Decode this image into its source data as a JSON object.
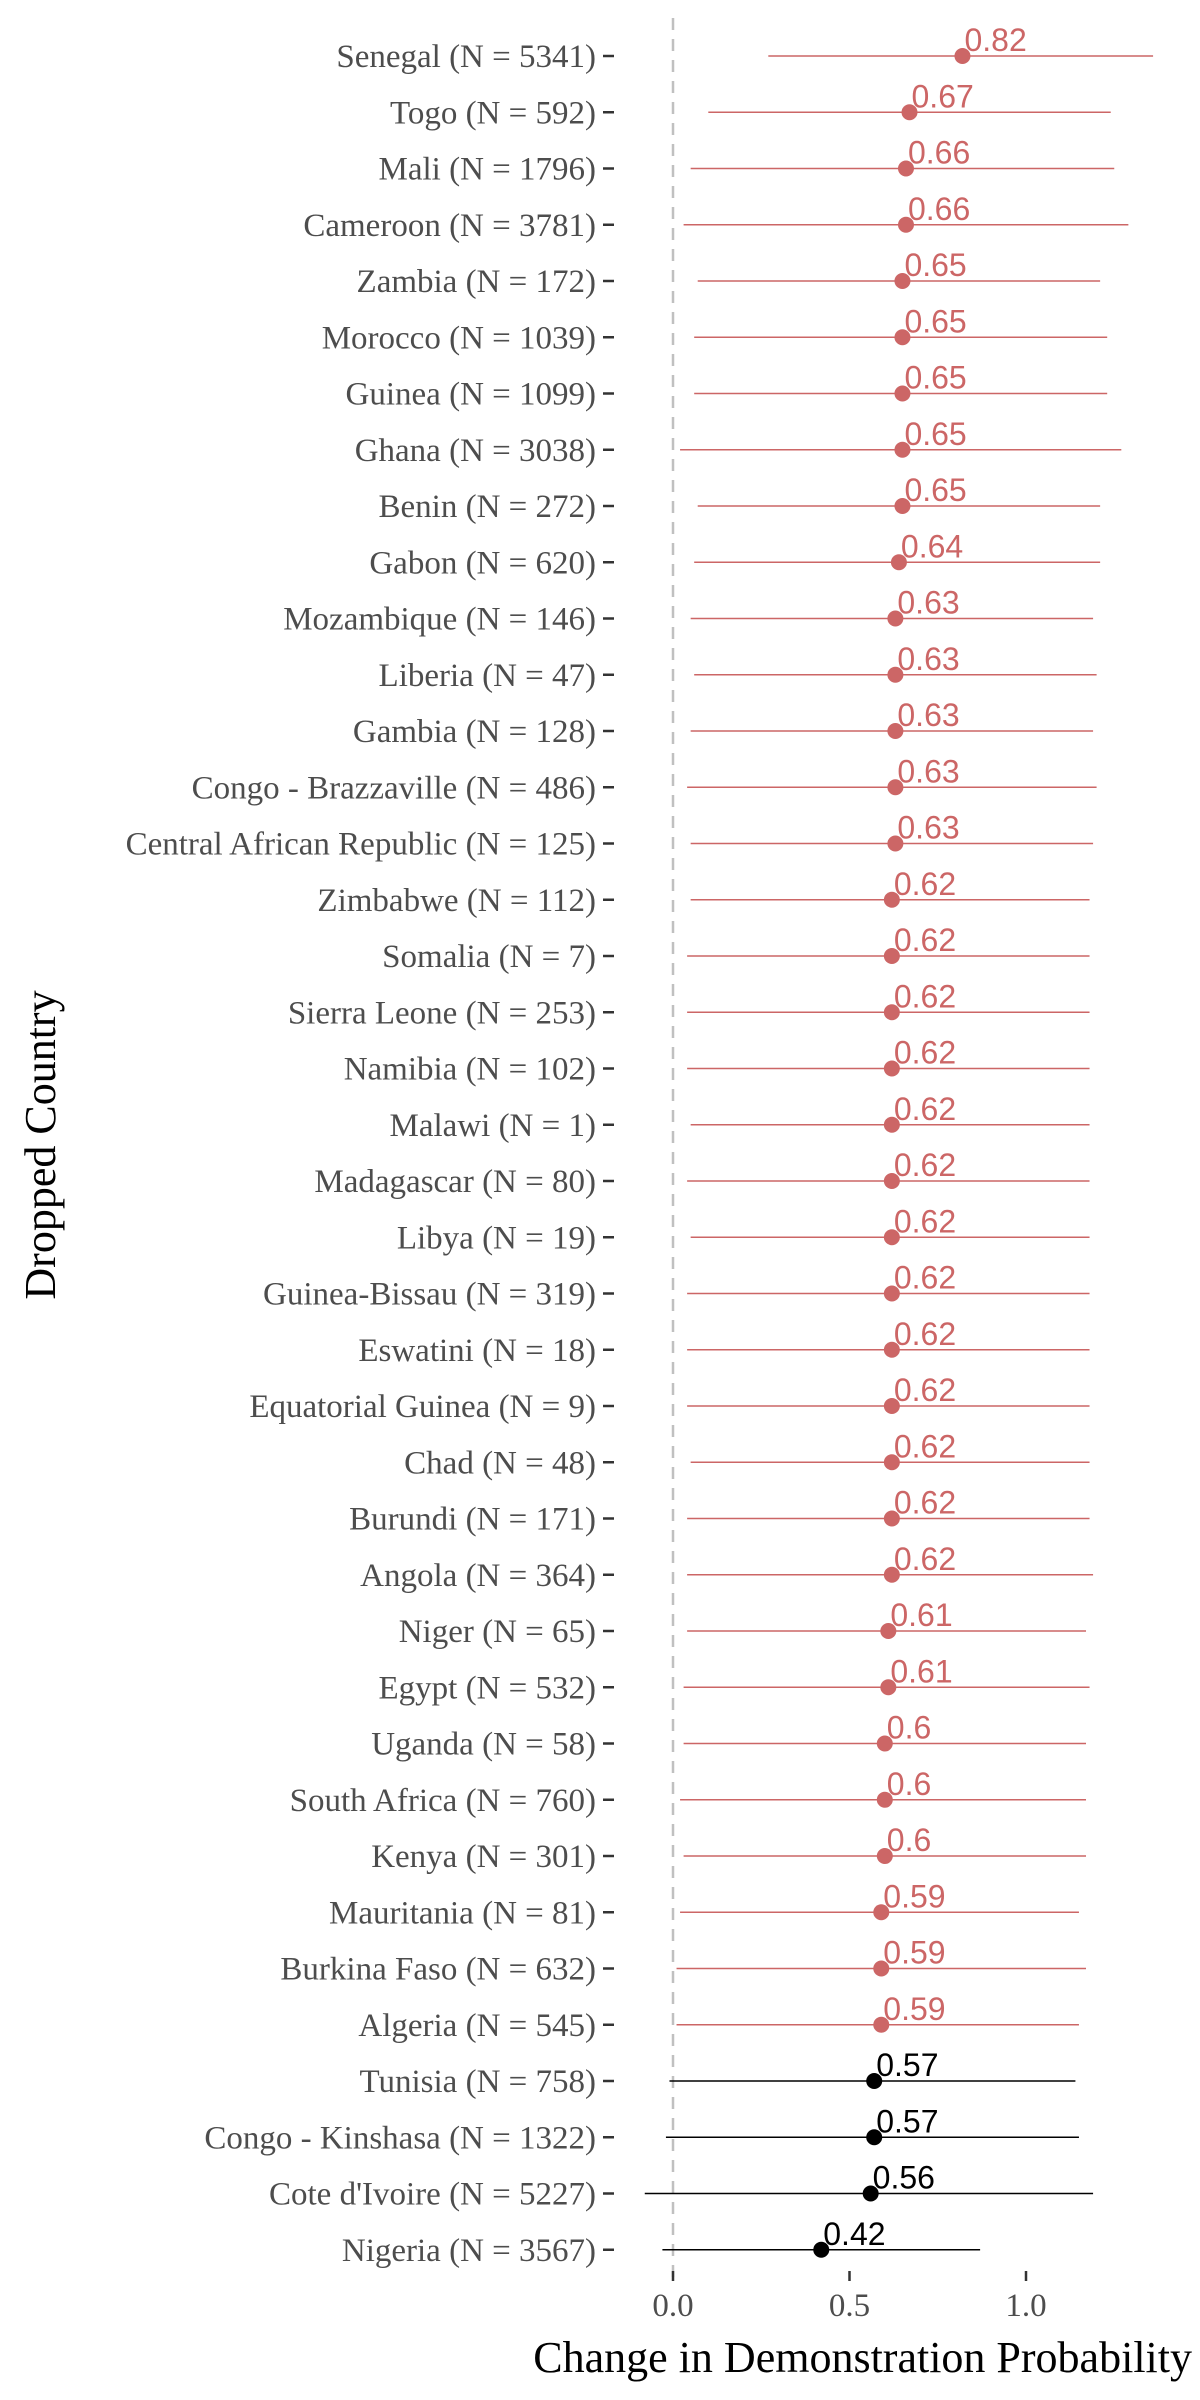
{
  "chart_data": {
    "type": "scatter",
    "xlabel": "Change in Demonstration Probability",
    "ylabel": "Dropped Country",
    "xlim": [
      -0.1,
      1.49
    ],
    "x_ticks": [
      0.0,
      0.5,
      1.0
    ],
    "x_tick_labels": [
      "0.0",
      "0.5",
      "1.0"
    ],
    "reference_line_x": 0,
    "grid": false,
    "legend": "none",
    "colors": {
      "significant": "#cc6666",
      "not_significant": "#000000",
      "reference": "#c0c0c0"
    },
    "points": [
      {
        "label": "Senegal (N = 5341)",
        "value": 0.82,
        "value_label": "0.82",
        "lo": 0.27,
        "hi": 1.36,
        "group": "significant"
      },
      {
        "label": "Togo (N = 592)",
        "value": 0.67,
        "value_label": "0.67",
        "lo": 0.1,
        "hi": 1.24,
        "group": "significant"
      },
      {
        "label": "Mali (N = 1796)",
        "value": 0.66,
        "value_label": "0.66",
        "lo": 0.05,
        "hi": 1.25,
        "group": "significant"
      },
      {
        "label": "Cameroon (N = 3781)",
        "value": 0.66,
        "value_label": "0.66",
        "lo": 0.03,
        "hi": 1.29,
        "group": "significant"
      },
      {
        "label": "Zambia (N = 172)",
        "value": 0.65,
        "value_label": "0.65",
        "lo": 0.07,
        "hi": 1.21,
        "group": "significant"
      },
      {
        "label": "Morocco (N = 1039)",
        "value": 0.65,
        "value_label": "0.65",
        "lo": 0.06,
        "hi": 1.23,
        "group": "significant"
      },
      {
        "label": "Guinea (N = 1099)",
        "value": 0.65,
        "value_label": "0.65",
        "lo": 0.06,
        "hi": 1.23,
        "group": "significant"
      },
      {
        "label": "Ghana (N = 3038)",
        "value": 0.65,
        "value_label": "0.65",
        "lo": 0.02,
        "hi": 1.27,
        "group": "significant"
      },
      {
        "label": "Benin (N = 272)",
        "value": 0.65,
        "value_label": "0.65",
        "lo": 0.07,
        "hi": 1.21,
        "group": "significant"
      },
      {
        "label": "Gabon (N = 620)",
        "value": 0.64,
        "value_label": "0.64",
        "lo": 0.06,
        "hi": 1.21,
        "group": "significant"
      },
      {
        "label": "Mozambique (N = 146)",
        "value": 0.63,
        "value_label": "0.63",
        "lo": 0.05,
        "hi": 1.19,
        "group": "significant"
      },
      {
        "label": "Liberia (N = 47)",
        "value": 0.63,
        "value_label": "0.63",
        "lo": 0.06,
        "hi": 1.2,
        "group": "significant"
      },
      {
        "label": "Gambia (N = 128)",
        "value": 0.63,
        "value_label": "0.63",
        "lo": 0.05,
        "hi": 1.19,
        "group": "significant"
      },
      {
        "label": "Congo - Brazzaville (N = 486)",
        "value": 0.63,
        "value_label": "0.63",
        "lo": 0.04,
        "hi": 1.2,
        "group": "significant"
      },
      {
        "label": "Central African Republic (N = 125)",
        "value": 0.63,
        "value_label": "0.63",
        "lo": 0.05,
        "hi": 1.19,
        "group": "significant"
      },
      {
        "label": "Zimbabwe (N = 112)",
        "value": 0.62,
        "value_label": "0.62",
        "lo": 0.05,
        "hi": 1.18,
        "group": "significant"
      },
      {
        "label": "Somalia (N = 7)",
        "value": 0.62,
        "value_label": "0.62",
        "lo": 0.04,
        "hi": 1.18,
        "group": "significant"
      },
      {
        "label": "Sierra Leone (N = 253)",
        "value": 0.62,
        "value_label": "0.62",
        "lo": 0.04,
        "hi": 1.18,
        "group": "significant"
      },
      {
        "label": "Namibia (N = 102)",
        "value": 0.62,
        "value_label": "0.62",
        "lo": 0.04,
        "hi": 1.18,
        "group": "significant"
      },
      {
        "label": "Malawi (N = 1)",
        "value": 0.62,
        "value_label": "0.62",
        "lo": 0.05,
        "hi": 1.18,
        "group": "significant"
      },
      {
        "label": "Madagascar (N = 80)",
        "value": 0.62,
        "value_label": "0.62",
        "lo": 0.04,
        "hi": 1.18,
        "group": "significant"
      },
      {
        "label": "Libya (N = 19)",
        "value": 0.62,
        "value_label": "0.62",
        "lo": 0.05,
        "hi": 1.18,
        "group": "significant"
      },
      {
        "label": "Guinea-Bissau (N = 319)",
        "value": 0.62,
        "value_label": "0.62",
        "lo": 0.04,
        "hi": 1.18,
        "group": "significant"
      },
      {
        "label": "Eswatini (N = 18)",
        "value": 0.62,
        "value_label": "0.62",
        "lo": 0.04,
        "hi": 1.18,
        "group": "significant"
      },
      {
        "label": "Equatorial Guinea (N = 9)",
        "value": 0.62,
        "value_label": "0.62",
        "lo": 0.04,
        "hi": 1.18,
        "group": "significant"
      },
      {
        "label": "Chad (N = 48)",
        "value": 0.62,
        "value_label": "0.62",
        "lo": 0.05,
        "hi": 1.18,
        "group": "significant"
      },
      {
        "label": "Burundi (N = 171)",
        "value": 0.62,
        "value_label": "0.62",
        "lo": 0.04,
        "hi": 1.18,
        "group": "significant"
      },
      {
        "label": "Angola (N = 364)",
        "value": 0.62,
        "value_label": "0.62",
        "lo": 0.04,
        "hi": 1.19,
        "group": "significant"
      },
      {
        "label": "Niger (N = 65)",
        "value": 0.61,
        "value_label": "0.61",
        "lo": 0.04,
        "hi": 1.17,
        "group": "significant"
      },
      {
        "label": "Egypt (N = 532)",
        "value": 0.61,
        "value_label": "0.61",
        "lo": 0.03,
        "hi": 1.18,
        "group": "significant"
      },
      {
        "label": "Uganda (N = 58)",
        "value": 0.6,
        "value_label": "0.6",
        "lo": 0.03,
        "hi": 1.17,
        "group": "significant"
      },
      {
        "label": "South Africa (N = 760)",
        "value": 0.6,
        "value_label": "0.6",
        "lo": 0.02,
        "hi": 1.17,
        "group": "significant"
      },
      {
        "label": "Kenya (N = 301)",
        "value": 0.6,
        "value_label": "0.6",
        "lo": 0.03,
        "hi": 1.17,
        "group": "significant"
      },
      {
        "label": "Mauritania (N = 81)",
        "value": 0.59,
        "value_label": "0.59",
        "lo": 0.02,
        "hi": 1.15,
        "group": "significant"
      },
      {
        "label": "Burkina Faso (N = 632)",
        "value": 0.59,
        "value_label": "0.59",
        "lo": 0.01,
        "hi": 1.17,
        "group": "significant"
      },
      {
        "label": "Algeria (N = 545)",
        "value": 0.59,
        "value_label": "0.59",
        "lo": 0.01,
        "hi": 1.15,
        "group": "significant"
      },
      {
        "label": "Tunisia (N = 758)",
        "value": 0.57,
        "value_label": "0.57",
        "lo": -0.01,
        "hi": 1.14,
        "group": "not_significant"
      },
      {
        "label": "Congo - Kinshasa (N = 1322)",
        "value": 0.57,
        "value_label": "0.57",
        "lo": -0.02,
        "hi": 1.15,
        "group": "not_significant"
      },
      {
        "label": "Cote d'Ivoire (N = 5227)",
        "value": 0.56,
        "value_label": "0.56",
        "lo": -0.08,
        "hi": 1.19,
        "group": "not_significant"
      },
      {
        "label": "Nigeria (N = 3567)",
        "value": 0.42,
        "value_label": "0.42",
        "lo": -0.03,
        "hi": 0.87,
        "group": "not_significant"
      }
    ]
  }
}
